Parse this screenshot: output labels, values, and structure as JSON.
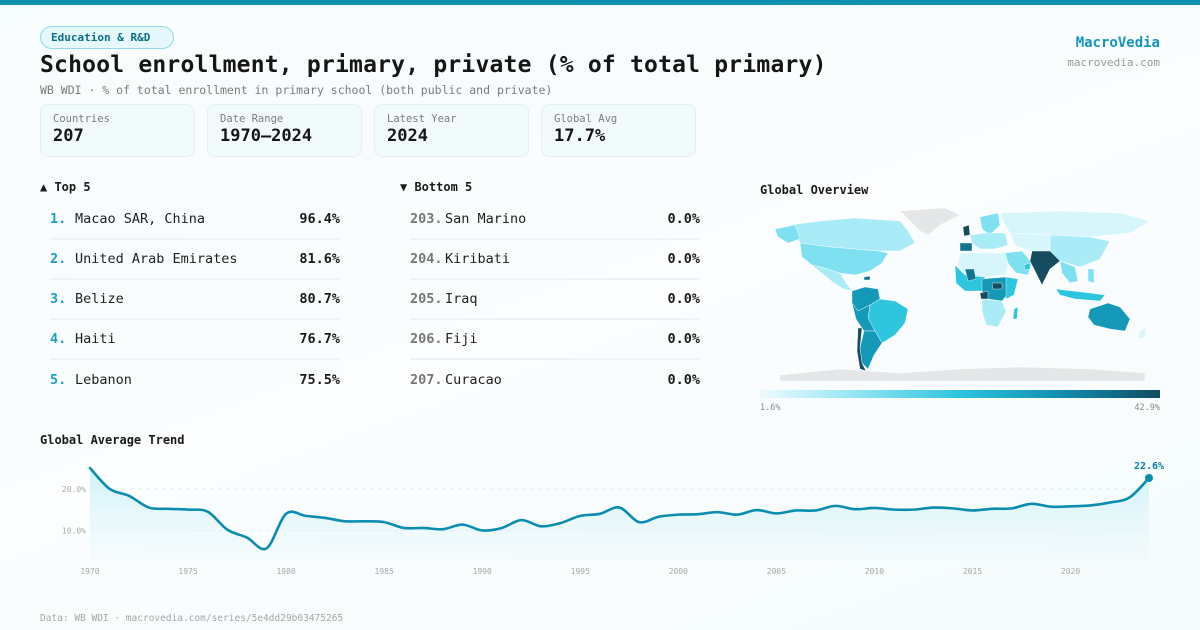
{
  "header": {
    "category_badge": "Education & R&D",
    "title": "School enrollment, primary, private (% of total primary)",
    "subtitle": "WB WDI · % of total enrollment in primary school (both public and private)"
  },
  "brand": {
    "name": "MacroVedia",
    "url": "macrovedia.com"
  },
  "stats": [
    {
      "label": "Countries",
      "value": "207"
    },
    {
      "label": "Date Range",
      "value": "1970–2024"
    },
    {
      "label": "Latest Year",
      "value": "2024"
    },
    {
      "label": "Global Avg",
      "value": "17.7%"
    }
  ],
  "top5": {
    "heading": "▲ Top 5",
    "items": [
      {
        "rank": "1.",
        "name": "Macao SAR, China",
        "value": "96.4%"
      },
      {
        "rank": "2.",
        "name": "United Arab Emirates",
        "value": "81.6%"
      },
      {
        "rank": "3.",
        "name": "Belize",
        "value": "80.7%"
      },
      {
        "rank": "4.",
        "name": "Haiti",
        "value": "76.7%"
      },
      {
        "rank": "5.",
        "name": "Lebanon",
        "value": "75.5%"
      }
    ]
  },
  "bottom5": {
    "heading": "▼ Bottom 5",
    "items": [
      {
        "rank": "203.",
        "name": "San Marino",
        "value": "0.0%"
      },
      {
        "rank": "204.",
        "name": "Kiribati",
        "value": "0.0%"
      },
      {
        "rank": "205.",
        "name": "Iraq",
        "value": "0.0%"
      },
      {
        "rank": "206.",
        "name": "Fiji",
        "value": "0.0%"
      },
      {
        "rank": "207.",
        "name": "Curacao",
        "value": "0.0%"
      }
    ]
  },
  "map": {
    "title": "Global Overview",
    "legend_min": "1.6%",
    "legend_max": "42.9%",
    "colors": {
      "no_data": "#e4e6e8",
      "c1": "#d6f6fb",
      "c2": "#a9ecf7",
      "c3": "#7fe0f2",
      "c4": "#2ec5df",
      "c5": "#1599b9",
      "c6": "#11758f",
      "c7": "#164c60"
    }
  },
  "footer": "Data: WB WDI · macrovedia.com/series/5e4dd29b03475265",
  "chart_data": {
    "type": "area",
    "title": "Global Average Trend",
    "xlabel": "",
    "ylabel": "",
    "x": [
      1970,
      1971,
      1972,
      1973,
      1974,
      1975,
      1976,
      1977,
      1978,
      1979,
      1980,
      1981,
      1982,
      1983,
      1984,
      1985,
      1986,
      1987,
      1988,
      1989,
      1990,
      1991,
      1992,
      1993,
      1994,
      1995,
      1996,
      1997,
      1998,
      1999,
      2000,
      2001,
      2002,
      2003,
      2004,
      2005,
      2006,
      2007,
      2008,
      2009,
      2010,
      2011,
      2012,
      2013,
      2014,
      2015,
      2016,
      2017,
      2018,
      2019,
      2020,
      2021,
      2022,
      2023,
      2024
    ],
    "series": [
      {
        "name": "Global average",
        "values": [
          25.0,
          20.0,
          18.3,
          15.5,
          15.2,
          15.0,
          14.5,
          10.2,
          8.3,
          5.7,
          14.0,
          13.5,
          13.0,
          12.2,
          12.2,
          12.0,
          10.6,
          10.6,
          10.3,
          11.4,
          10.0,
          10.6,
          12.5,
          11.0,
          11.8,
          13.5,
          14.0,
          15.5,
          12.0,
          13.3,
          13.8,
          13.9,
          14.4,
          13.8,
          14.9,
          14.1,
          14.8,
          14.8,
          15.9,
          15.1,
          15.4,
          15.0,
          15.0,
          15.5,
          15.3,
          14.8,
          15.2,
          15.3,
          16.4,
          15.7,
          15.8,
          16.0,
          16.7,
          17.9,
          22.6
        ]
      }
    ],
    "x_ticks": [
      1970,
      1975,
      1980,
      1985,
      1990,
      1995,
      2000,
      2005,
      2010,
      2015,
      2020
    ],
    "y_ticks": [
      10,
      20
    ],
    "y_tick_labels": [
      "10.0%",
      "20.0%"
    ],
    "ylim": [
      2.9,
      25.0
    ],
    "end_label": "22.6%",
    "grid": true,
    "color": "#0b8db0"
  }
}
